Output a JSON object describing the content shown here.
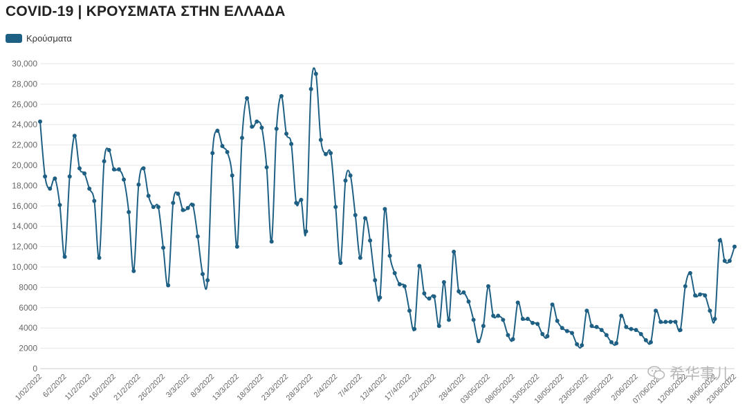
{
  "title": "COVID-19 | ΚΡΟΥΣΜΑΤΑ ΣΤΗΝ ΕΛΛΑΔΑ",
  "watermark": "希华事儿",
  "colors": {
    "series": "#1e5f84",
    "grid": "#e6e6e6",
    "axis": "#cccccc"
  },
  "chart_data": {
    "type": "line",
    "legend_position": "top-left",
    "grid": true,
    "ylim": [
      0,
      30000
    ],
    "yticks": [
      0,
      2000,
      4000,
      6000,
      8000,
      10000,
      12000,
      14000,
      16000,
      18000,
      20000,
      22000,
      24000,
      26000,
      28000,
      30000
    ],
    "ytick_labels": [
      "0",
      "2000",
      "4000",
      "6000",
      "8000",
      "10,000",
      "12,000",
      "14,000",
      "16,000",
      "18,000",
      "20,000",
      "22,000",
      "24,000",
      "26,000",
      "28,000",
      "30,000"
    ],
    "x_start": "2022-02-01",
    "xtick_labels": [
      "1/02/2022",
      "6/2/2022",
      "11/2/2022",
      "16/2/2022",
      "21/2/2022",
      "26/2/2022",
      "3/3/2022",
      "8/3/2022",
      "13/3/2022",
      "18/3/2022",
      "23/3/2022",
      "28/3/2022",
      "2/4/2022",
      "7/4/2022",
      "12/4/2022",
      "17/4/2022",
      "22/4/2022",
      "28/4/2022",
      "03/05/2022",
      "08/05/2022",
      "13/05/2022",
      "18/05/2022",
      "23/05/2022",
      "28/05/2022",
      "2/06/2022",
      "07/06/2022",
      "12/06/2022",
      "18/06/2022",
      "23/06/2022"
    ],
    "series": [
      {
        "name": "Κρούσματα",
        "values": [
          24300,
          18900,
          17700,
          18700,
          16100,
          11000,
          18900,
          22900,
          19700,
          19200,
          17700,
          16500,
          10900,
          20400,
          21500,
          19600,
          19600,
          18600,
          15400,
          9600,
          18100,
          19700,
          17000,
          15900,
          15900,
          11900,
          8200,
          16300,
          17200,
          15600,
          15800,
          16100,
          13000,
          9300,
          8700,
          21200,
          23400,
          21900,
          21300,
          19000,
          12000,
          22700,
          26600,
          23800,
          24300,
          23700,
          19800,
          12500,
          23600,
          26800,
          23100,
          22100,
          16300,
          16600,
          13500,
          27500,
          29000,
          22500,
          21100,
          21200,
          15900,
          10400,
          18500,
          19000,
          15100,
          10900,
          14800,
          12600,
          8700,
          7000,
          15700,
          11100,
          9400,
          8300,
          8100,
          5700,
          3900,
          10100,
          7400,
          6900,
          7100,
          4200,
          8500,
          4800,
          11500,
          7600,
          7500,
          6600,
          4800,
          2700,
          4200,
          8100,
          5200,
          5200,
          4800,
          3300,
          2900,
          6500,
          4900,
          4900,
          4500,
          4400,
          3400,
          3200,
          6300,
          4700,
          4000,
          3700,
          3500,
          2400,
          2300,
          5700,
          4200,
          4100,
          3800,
          3300,
          2600,
          2500,
          5200,
          4100,
          3900,
          3800,
          3400,
          2800,
          2600,
          5700,
          4600,
          4600,
          4600,
          4600,
          3800,
          8100,
          9400,
          7200,
          7300,
          7200,
          5700,
          4900,
          12600,
          10600,
          10600,
          12000
        ]
      }
    ]
  }
}
